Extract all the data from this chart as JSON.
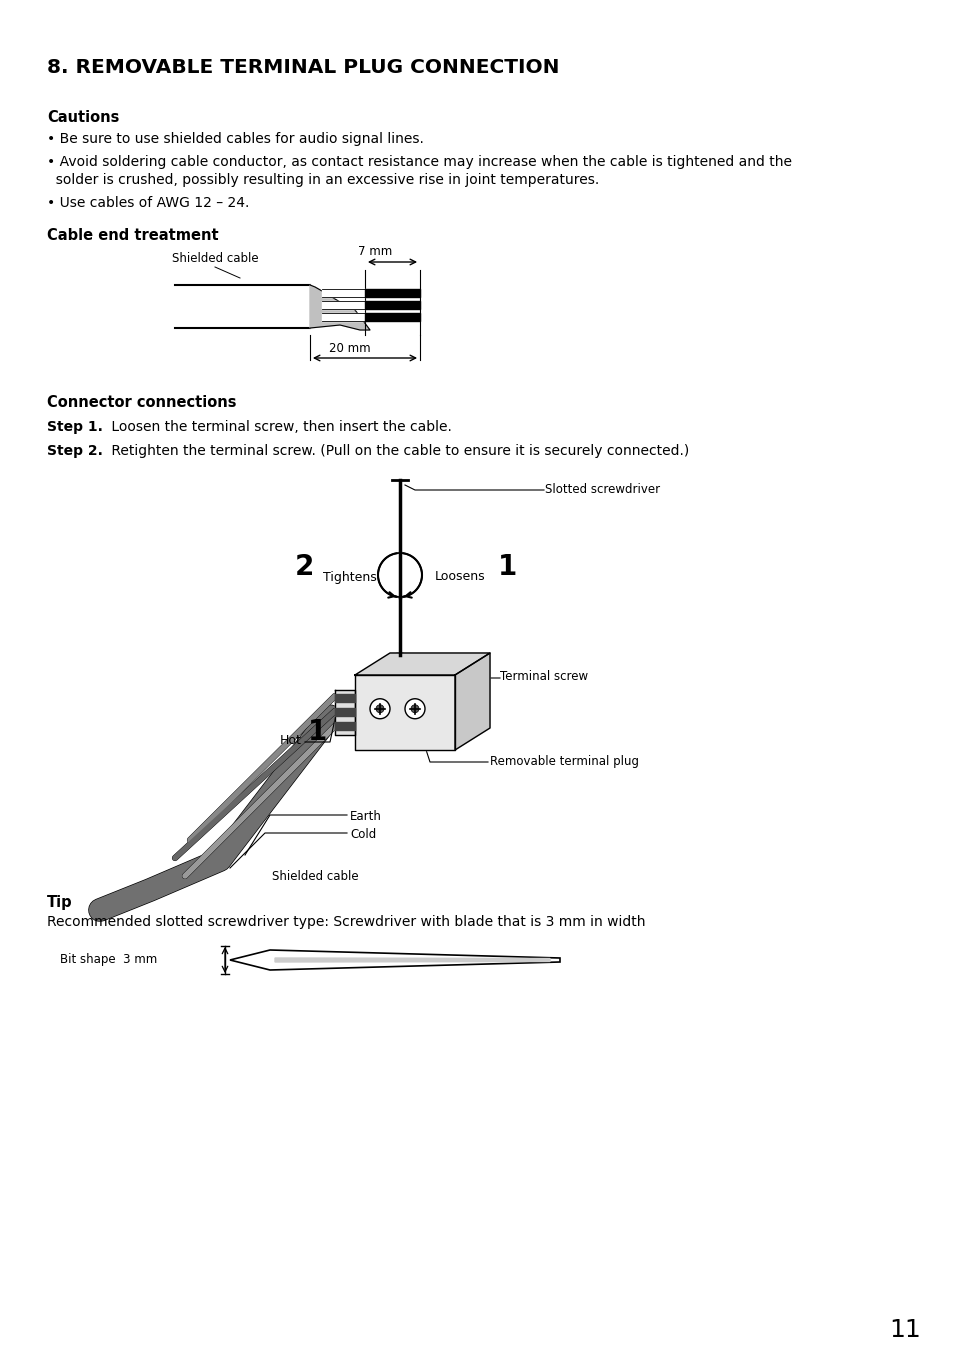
{
  "title": "8. REMOVABLE TERMINAL PLUG CONNECTION",
  "background_color": "#ffffff",
  "text_color": "#000000",
  "page_number": "11",
  "cautions_header": "Cautions",
  "caution1": "• Be sure to use shielded cables for audio signal lines.",
  "caution2a": "• Avoid soldering cable conductor, as contact resistance may increase when the cable is tightened and the",
  "caution2b": "  solder is crushed, possibly resulting in an excessive rise in joint temperatures.",
  "caution3": "• Use cables of AWG 12 – 24.",
  "cable_end_header": "Cable end treatment",
  "label_shielded_cable": "Shielded cable",
  "label_7mm": "7 mm",
  "label_20mm": "20 mm",
  "connector_header": "Connector connections",
  "step1_bold": "Step 1.",
  "step1_text": " Loosen the terminal screw, then insert the cable.",
  "step2_bold": "Step 2.",
  "step2_text": " Retighten the terminal screw. (Pull on the cable to ensure it is securely connected.)",
  "label_slotted": "Slotted screwdriver",
  "label_2": "2",
  "label_tightens": "Tightens",
  "label_loosens": "Loosens",
  "label_1a": "1",
  "label_terminal_screw": "Terminal screw",
  "label_hot": "Hot",
  "label_1b": "1",
  "label_earth": "Earth",
  "label_cold": "Cold",
  "label_shielded2": "Shielded cable",
  "label_removable": "Removable terminal plug",
  "tip_header": "Tip",
  "tip_text": "Recommended slotted screwdriver type: Screwdriver with blade that is 3 mm in width",
  "label_bit": "Bit shape  3 mm"
}
